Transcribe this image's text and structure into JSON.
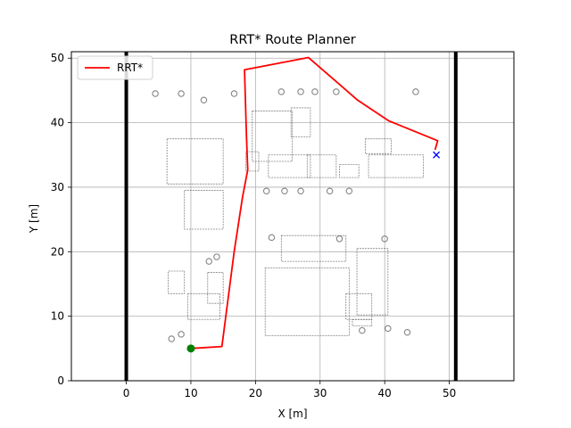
{
  "chart_data": {
    "type": "line",
    "title": "RRT* Route Planner",
    "xlabel": "X [m]",
    "ylabel": "Y [m]",
    "xlim": [
      -8.5,
      60
    ],
    "ylim": [
      0,
      51
    ],
    "xticks": [
      0,
      10,
      20,
      30,
      40,
      50
    ],
    "yticks": [
      0,
      10,
      20,
      30,
      40,
      50
    ],
    "grid": true,
    "legend": "top-left",
    "colors": {
      "route": "#ff0000",
      "start": "#008000",
      "goal": "#0000ff",
      "boundary": "#000000",
      "grid": "#b0b0b0",
      "obstacles": "#444444"
    },
    "boundary": {
      "x": [
        0,
        51
      ],
      "y": [
        0,
        51
      ]
    },
    "series": [
      {
        "name": "RRT*",
        "x": [
          10,
          14.8,
          16.7,
          18,
          18.8,
          18.6,
          18.3,
          28.2,
          35.8,
          40.6,
          48.2,
          47.8
        ],
        "y": [
          5,
          5.3,
          20,
          28.5,
          32.7,
          38,
          48.2,
          50.1,
          43.5,
          40.3,
          37.2,
          35.8
        ]
      }
    ],
    "start_point": {
      "x": 10,
      "y": 5,
      "marker": "circle"
    },
    "goal_point": {
      "x": 48,
      "y": 35,
      "marker": "x"
    },
    "obstacle_boxes": [
      [
        6.3,
        30.5,
        15,
        37.5
      ],
      [
        6.5,
        13.5,
        9,
        17
      ],
      [
        12.6,
        12,
        15,
        16.8
      ],
      [
        9.5,
        9.5,
        14.5,
        13.5
      ],
      [
        9,
        23.5,
        15,
        29.5
      ],
      [
        18.5,
        32.5,
        20.5,
        35.5
      ],
      [
        19.5,
        34,
        25.7,
        41.8
      ],
      [
        22,
        31.5,
        28.5,
        35
      ],
      [
        28,
        31.5,
        32.5,
        35
      ],
      [
        24,
        18.5,
        34,
        22.5
      ],
      [
        21.5,
        7,
        34.5,
        17.5
      ],
      [
        34,
        9.5,
        38,
        13.5
      ],
      [
        35.7,
        10.2,
        40.5,
        20.5
      ],
      [
        35,
        8.5,
        38,
        9.5
      ],
      [
        37.5,
        31.5,
        46,
        35
      ],
      [
        37,
        35.2,
        41,
        37.5
      ],
      [
        25.5,
        37.8,
        28.5,
        42.3
      ],
      [
        33,
        31.5,
        36,
        33.5
      ]
    ],
    "obstacle_dots": [
      [
        8.5,
        44.5
      ],
      [
        12,
        43.5
      ],
      [
        24,
        44.8
      ],
      [
        27,
        44.8
      ],
      [
        29.2,
        44.8
      ],
      [
        32.5,
        44.8
      ],
      [
        44.8,
        44.8
      ],
      [
        21.7,
        29.4
      ],
      [
        24.5,
        29.4
      ],
      [
        27,
        29.4
      ],
      [
        31.5,
        29.4
      ],
      [
        34.5,
        29.4
      ],
      [
        7,
        6.5
      ],
      [
        8.5,
        7.2
      ],
      [
        36.5,
        7.8
      ],
      [
        40.5,
        8.1
      ],
      [
        43.5,
        7.5
      ],
      [
        33,
        22
      ],
      [
        40,
        22
      ],
      [
        22.5,
        22.2
      ],
      [
        12.8,
        18.5
      ],
      [
        14,
        19.2
      ],
      [
        4.5,
        44.5
      ],
      [
        16.7,
        44.5
      ]
    ]
  }
}
